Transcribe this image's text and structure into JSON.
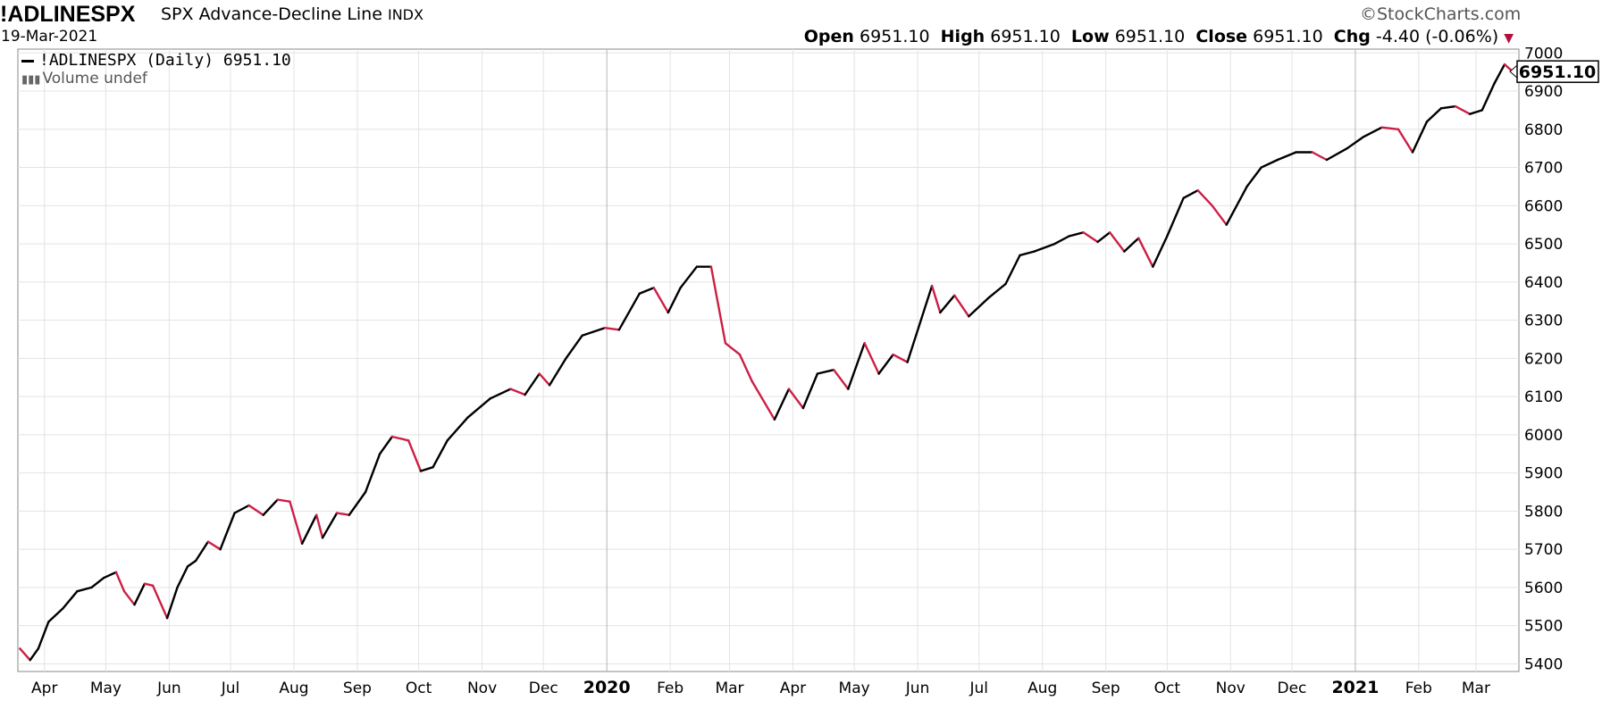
{
  "header": {
    "symbol": "!ADLINESPX",
    "description": "SPX Advance-Decline Line",
    "exchange": "INDX",
    "date": "19-Mar-2021",
    "copyright": "©StockCharts.com",
    "open_label": "Open",
    "open": "6951.10",
    "high_label": "High",
    "high": "6951.10",
    "low_label": "Low",
    "low": "6951.10",
    "close_label": "Close",
    "close": "6951.10",
    "chg_label": "Chg",
    "chg": "-4.40 (-0.06%)",
    "chg_icon": "down-triangle-icon"
  },
  "legend": {
    "series_label": "!ADLINESPX (Daily) 6951.10",
    "volume_label": "Volume undef"
  },
  "colors": {
    "up": "#000000",
    "down": "#cc1f45",
    "grid": "#e3e3e3",
    "text": "#000000"
  },
  "chart_data": {
    "type": "line",
    "title": "SPX Advance-Decline Line",
    "ylim": [
      5380,
      7010
    ],
    "y_ticks": [
      5400,
      5500,
      5600,
      5700,
      5800,
      5900,
      6000,
      6100,
      6200,
      6300,
      6400,
      6500,
      6600,
      6700,
      6800,
      6900,
      7000
    ],
    "x_ticks": [
      {
        "label": "Apr",
        "date": "2019-04-01"
      },
      {
        "label": "May",
        "date": "2019-05-01"
      },
      {
        "label": "Jun",
        "date": "2019-06-01"
      },
      {
        "label": "Jul",
        "date": "2019-07-01"
      },
      {
        "label": "Aug",
        "date": "2019-08-01"
      },
      {
        "label": "Sep",
        "date": "2019-09-01"
      },
      {
        "label": "Oct",
        "date": "2019-10-01"
      },
      {
        "label": "Nov",
        "date": "2019-11-01"
      },
      {
        "label": "Dec",
        "date": "2019-12-01"
      },
      {
        "label": "2020",
        "date": "2020-01-01",
        "bold": true
      },
      {
        "label": "Feb",
        "date": "2020-02-01"
      },
      {
        "label": "Mar",
        "date": "2020-03-01"
      },
      {
        "label": "Apr",
        "date": "2020-04-01"
      },
      {
        "label": "May",
        "date": "2020-05-01"
      },
      {
        "label": "Jun",
        "date": "2020-06-01"
      },
      {
        "label": "Jul",
        "date": "2020-07-01"
      },
      {
        "label": "Aug",
        "date": "2020-08-01"
      },
      {
        "label": "Sep",
        "date": "2020-09-01"
      },
      {
        "label": "Oct",
        "date": "2020-10-01"
      },
      {
        "label": "Nov",
        "date": "2020-11-01"
      },
      {
        "label": "Dec",
        "date": "2020-12-01"
      },
      {
        "label": "2021",
        "date": "2021-01-01",
        "bold": true
      },
      {
        "label": "Feb",
        "date": "2021-02-01"
      },
      {
        "label": "Mar",
        "date": "2021-03-01"
      }
    ],
    "last_value_label": "6951.10",
    "series": [
      {
        "name": "!ADLINESPX (Daily)",
        "points": [
          [
            "2019-03-20",
            5440
          ],
          [
            "2019-03-25",
            5410
          ],
          [
            "2019-03-29",
            5440
          ],
          [
            "2019-04-03",
            5510
          ],
          [
            "2019-04-10",
            5545
          ],
          [
            "2019-04-17",
            5590
          ],
          [
            "2019-04-24",
            5600
          ],
          [
            "2019-04-30",
            5625
          ],
          [
            "2019-05-06",
            5640
          ],
          [
            "2019-05-10",
            5590
          ],
          [
            "2019-05-15",
            5555
          ],
          [
            "2019-05-20",
            5610
          ],
          [
            "2019-05-24",
            5605
          ],
          [
            "2019-05-31",
            5520
          ],
          [
            "2019-06-05",
            5600
          ],
          [
            "2019-06-10",
            5655
          ],
          [
            "2019-06-14",
            5670
          ],
          [
            "2019-06-20",
            5720
          ],
          [
            "2019-06-26",
            5700
          ],
          [
            "2019-07-03",
            5795
          ],
          [
            "2019-07-10",
            5815
          ],
          [
            "2019-07-17",
            5790
          ],
          [
            "2019-07-24",
            5830
          ],
          [
            "2019-07-30",
            5825
          ],
          [
            "2019-08-05",
            5715
          ],
          [
            "2019-08-12",
            5790
          ],
          [
            "2019-08-15",
            5730
          ],
          [
            "2019-08-22",
            5795
          ],
          [
            "2019-08-28",
            5790
          ],
          [
            "2019-09-05",
            5850
          ],
          [
            "2019-09-12",
            5950
          ],
          [
            "2019-09-18",
            5995
          ],
          [
            "2019-09-26",
            5985
          ],
          [
            "2019-10-02",
            5905
          ],
          [
            "2019-10-08",
            5915
          ],
          [
            "2019-10-15",
            5985
          ],
          [
            "2019-10-25",
            6045
          ],
          [
            "2019-11-05",
            6095
          ],
          [
            "2019-11-15",
            6120
          ],
          [
            "2019-11-22",
            6105
          ],
          [
            "2019-11-29",
            6160
          ],
          [
            "2019-12-04",
            6130
          ],
          [
            "2019-12-12",
            6200
          ],
          [
            "2019-12-20",
            6260
          ],
          [
            "2019-12-31",
            6280
          ],
          [
            "2020-01-07",
            6275
          ],
          [
            "2020-01-17",
            6370
          ],
          [
            "2020-01-24",
            6385
          ],
          [
            "2020-01-31",
            6320
          ],
          [
            "2020-02-06",
            6385
          ],
          [
            "2020-02-14",
            6440
          ],
          [
            "2020-02-21",
            6440
          ],
          [
            "2020-02-28",
            6240
          ],
          [
            "2020-03-06",
            6210
          ],
          [
            "2020-03-12",
            6140
          ],
          [
            "2020-03-23",
            6040
          ],
          [
            "2020-03-30",
            6120
          ],
          [
            "2020-04-06",
            6070
          ],
          [
            "2020-04-13",
            6160
          ],
          [
            "2020-04-21",
            6170
          ],
          [
            "2020-04-28",
            6120
          ],
          [
            "2020-05-06",
            6240
          ],
          [
            "2020-05-13",
            6160
          ],
          [
            "2020-05-20",
            6210
          ],
          [
            "2020-05-27",
            6190
          ],
          [
            "2020-06-08",
            6390
          ],
          [
            "2020-06-12",
            6320
          ],
          [
            "2020-06-19",
            6365
          ],
          [
            "2020-06-26",
            6310
          ],
          [
            "2020-07-06",
            6360
          ],
          [
            "2020-07-14",
            6395
          ],
          [
            "2020-07-21",
            6470
          ],
          [
            "2020-07-28",
            6480
          ],
          [
            "2020-08-07",
            6500
          ],
          [
            "2020-08-14",
            6520
          ],
          [
            "2020-08-21",
            6530
          ],
          [
            "2020-08-28",
            6505
          ],
          [
            "2020-09-03",
            6530
          ],
          [
            "2020-09-10",
            6480
          ],
          [
            "2020-09-17",
            6515
          ],
          [
            "2020-09-24",
            6440
          ],
          [
            "2020-10-01",
            6520
          ],
          [
            "2020-10-09",
            6620
          ],
          [
            "2020-10-16",
            6640
          ],
          [
            "2020-10-23",
            6600
          ],
          [
            "2020-10-30",
            6550
          ],
          [
            "2020-11-09",
            6650
          ],
          [
            "2020-11-16",
            6700
          ],
          [
            "2020-11-24",
            6720
          ],
          [
            "2020-12-03",
            6740
          ],
          [
            "2020-12-11",
            6740
          ],
          [
            "2020-12-18",
            6720
          ],
          [
            "2020-12-28",
            6750
          ],
          [
            "2021-01-05",
            6780
          ],
          [
            "2021-01-14",
            6805
          ],
          [
            "2021-01-22",
            6800
          ],
          [
            "2021-01-29",
            6740
          ],
          [
            "2021-02-05",
            6820
          ],
          [
            "2021-02-12",
            6855
          ],
          [
            "2021-02-19",
            6860
          ],
          [
            "2021-02-26",
            6840
          ],
          [
            "2021-03-04",
            6850
          ],
          [
            "2021-03-10",
            6920
          ],
          [
            "2021-03-15",
            6970
          ],
          [
            "2021-03-19",
            6951.1
          ]
        ]
      }
    ]
  }
}
